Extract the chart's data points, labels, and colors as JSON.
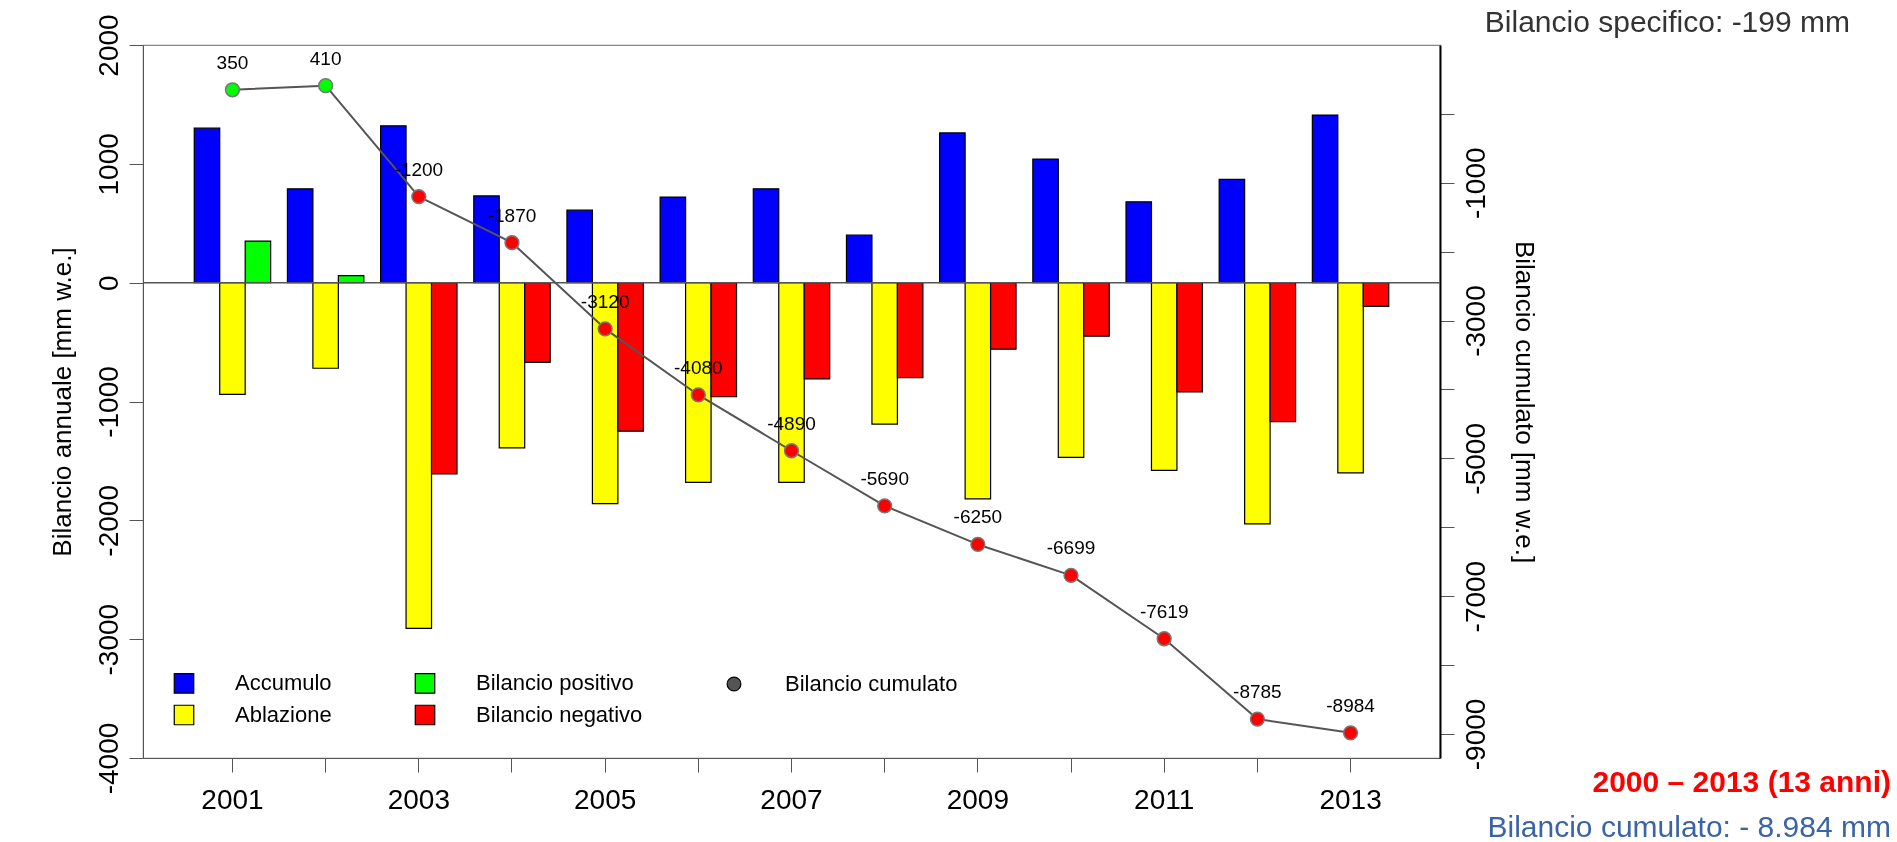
{
  "chart_data": {
    "type": "bar",
    "ylabel": "Bilancio annuale [mm w.e.]",
    "y2label": "Bilancio cumulato [mm w.e.]",
    "categories": [
      "2001",
      null,
      "2003",
      null,
      "2005",
      null,
      "2007",
      null,
      "2009",
      null,
      "2011",
      null,
      "2013"
    ],
    "series": [
      {
        "name": "Accumulo",
        "color": "#0000ff",
        "values": [
          1300,
          790,
          1320,
          730,
          610,
          720,
          790,
          400,
          1260,
          1040,
          680,
          870,
          1410
        ]
      },
      {
        "name": "Ablazione",
        "color": "#ffff00",
        "values": [
          -940,
          -720,
          -2910,
          -1390,
          -1860,
          -1680,
          -1680,
          -1190,
          -1820,
          -1470,
          -1580,
          -2030,
          -1600
        ]
      },
      {
        "name": "Bilancio positivo",
        "color": "#00ff00",
        "values": [
          350,
          60,
          null,
          null,
          null,
          null,
          null,
          null,
          null,
          null,
          null,
          null,
          null
        ]
      },
      {
        "name": "Bilancio negativo",
        "color": "#ff0000",
        "values": [
          null,
          null,
          -1610,
          -670,
          -1250,
          -960,
          -810,
          -800,
          -560,
          -450,
          -920,
          -1170,
          -200
        ]
      },
      {
        "name": "Bilancio cumulato",
        "type": "line",
        "axis": "y2",
        "color": "#555555",
        "marker": "circle",
        "colors": [
          "#00ff00",
          "#00ff00",
          "#ff0000",
          "#ff0000",
          "#ff0000",
          "#ff0000",
          "#ff0000",
          "#ff0000",
          "#ff0000",
          "#ff0000",
          "#ff0000",
          "#ff0000",
          "#ff0000"
        ],
        "values": [
          350,
          410,
          -1200,
          -1870,
          -3120,
          -4080,
          -4890,
          -5690,
          -6250,
          -6699,
          -7619,
          -8785,
          -8984
        ],
        "value_labels": [
          "350",
          "410",
          "-1200",
          "-1870",
          "-3120",
          "-4080",
          "-4890",
          "-5690",
          "-6250",
          "-6699",
          "-7619",
          "-8785",
          "-8984"
        ]
      }
    ],
    "ylim": [
      -4000,
      2000
    ],
    "yticks": [
      -4000,
      -3000,
      -2000,
      -1000,
      0,
      1000,
      2000
    ],
    "y2lim": [
      -9350,
      1000
    ],
    "y2ticks": [
      {
        "value": 0,
        "label": null
      },
      -1000,
      {
        "value": -2000,
        "label": null
      },
      -3000,
      {
        "value": -4000,
        "label": null
      },
      -5000,
      {
        "value": -6000,
        "label": null
      },
      -7000,
      {
        "value": -8000,
        "label": null
      },
      -9000
    ],
    "ref_lines": [
      {
        "axis": "y",
        "value": 0,
        "color": "#555555"
      }
    ],
    "legend": "bottom left",
    "grid": false,
    "annotations": [
      "Bilancio specifico: -199 mm",
      "2000 – 2013 (13 anni)",
      "Bilancio cumulato: - 8.984 mm"
    ]
  }
}
